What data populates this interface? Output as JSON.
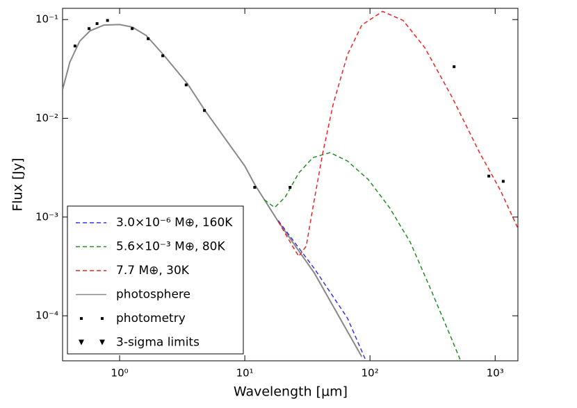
{
  "chart_data": {
    "type": "line",
    "xlabel": "Wavelength [µm]",
    "ylabel": "Flux [Jy]",
    "xscale": "log",
    "yscale": "log",
    "xlim": [
      0.35,
      1520
    ],
    "ylim": [
      3.5e-05,
      0.13
    ],
    "xticks": [
      {
        "value": 1,
        "label": "10⁰"
      },
      {
        "value": 10,
        "label": "10¹"
      },
      {
        "value": 100,
        "label": "10²"
      },
      {
        "value": 1000,
        "label": "10³"
      }
    ],
    "yticks": [
      {
        "value": 0.0001,
        "label": "10⁻⁴"
      },
      {
        "value": 0.001,
        "label": "10⁻³"
      },
      {
        "value": 0.01,
        "label": "10⁻²"
      },
      {
        "value": 0.1,
        "label": "10⁻¹"
      }
    ],
    "legend": "lower left",
    "series": [
      {
        "name": "3.0×10⁻⁶ M⊕, 160K",
        "color": "#3333ee",
        "style": "dashed",
        "x": [
          18.5,
          36,
          66,
          92
        ],
        "values": [
          0.00092,
          0.0003,
          9.5e-05,
          3.6e-05
        ]
      },
      {
        "name": "5.6×10⁻³ M⊕, 80K",
        "color": "#228b22",
        "style": "dashed",
        "x": [
          14.3,
          17.3,
          21,
          27,
          35,
          48,
          66,
          97,
          143,
          210,
          310,
          450,
          530
        ],
        "values": [
          0.0015,
          0.00125,
          0.00159,
          0.0028,
          0.004,
          0.0045,
          0.0037,
          0.0024,
          0.00125,
          0.000555,
          0.000178,
          5.8e-05,
          3.5e-05
        ]
      },
      {
        "name": "7.7 M⊕, 30K",
        "color": "#ee2222",
        "style": "dashed",
        "x": [
          18.5,
          24,
          27,
          31,
          35,
          42,
          51,
          66,
          86,
          126,
          184,
          275,
          450,
          750,
          1100,
          1520
        ],
        "values": [
          0.0009,
          0.00051,
          0.0004,
          0.00051,
          0.00125,
          0.0045,
          0.0141,
          0.0438,
          0.088,
          0.121,
          0.098,
          0.0515,
          0.0166,
          0.0045,
          0.00187,
          0.00077
        ]
      },
      {
        "name": "photosphere",
        "color": "#888888",
        "style": "solid",
        "x": [
          0.35,
          0.4,
          0.48,
          0.58,
          0.75,
          1.0,
          1.26,
          1.63,
          2.24,
          3.5,
          4.8,
          10,
          12.1,
          18.5,
          36,
          86
        ],
        "values": [
          0.0195,
          0.037,
          0.0605,
          0.077,
          0.088,
          0.089,
          0.084,
          0.069,
          0.044,
          0.0222,
          0.012,
          0.00329,
          0.0021,
          0.0009,
          0.00027,
          3.85e-05
        ]
      },
      {
        "name": "photometry",
        "color": "#000000",
        "style": "points",
        "x": [
          0.44,
          0.57,
          0.66,
          0.8,
          1.26,
          1.69,
          2.21,
          3.4,
          4.76,
          12.0,
          23,
          470,
          890,
          1160
        ],
        "values": [
          0.054,
          0.081,
          0.091,
          0.098,
          0.081,
          0.064,
          0.043,
          0.0218,
          0.012,
          0.002,
          0.002,
          0.0333,
          0.0026,
          0.0023
        ]
      },
      {
        "name": "3-sigma limits",
        "color": "#000000",
        "style": "triangles",
        "x": [],
        "values": []
      }
    ]
  }
}
